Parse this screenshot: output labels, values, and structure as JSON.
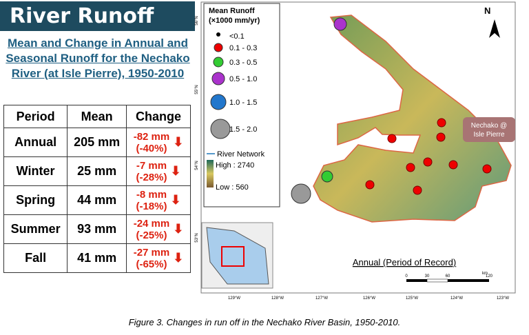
{
  "panel": {
    "title": "River Runoff",
    "subtitle": "Mean and Change in Annual and Seasonal Runoff for the Nechako River (at Isle Pierre), 1950-2010",
    "table": {
      "headers": [
        "Period",
        "Mean",
        "Change"
      ],
      "rows": [
        [
          "Annual",
          "205 mm",
          "-82 mm",
          "(-40%)"
        ],
        [
          "Winter",
          "25 mm",
          "-7 mm",
          "(-28%)"
        ],
        [
          "Spring",
          "44 mm",
          "-8 mm",
          "(-18%)"
        ],
        [
          "Summer",
          "93 mm",
          "-24 mm",
          "(-25%)"
        ],
        [
          "Fall",
          "41 mm",
          "-27 mm",
          "(-65%)"
        ]
      ]
    }
  },
  "map": {
    "legend_title": "Mean Runoff",
    "legend_unit": "(×1000 mm/yr)",
    "legend_items": [
      "<0.1",
      "0.1 - 0.3",
      "0.3 - 0.5",
      "0.5 - 1.0",
      "1.0 - 1.5",
      "1.5 - 2.0"
    ],
    "river_network": "River Network",
    "high": "High : 2740",
    "low": "Low : 560",
    "station": [
      "Nechako @",
      "Isle Pierre"
    ],
    "map_title": "Annual (Period of Record)",
    "north": "N",
    "lat_labels": [
      "56°N",
      "55°N",
      "54°N",
      "53°N"
    ],
    "lon_labels": [
      "129°W",
      "128°W",
      "127°W",
      "126°W",
      "125°W",
      "124°W",
      "123°W"
    ],
    "scale": [
      "0",
      "30",
      "60",
      "120"
    ],
    "scale_unit": "km"
  },
  "caption": "Figure 3. Changes in run off in the Nechako River Basin, 1950-2010."
}
